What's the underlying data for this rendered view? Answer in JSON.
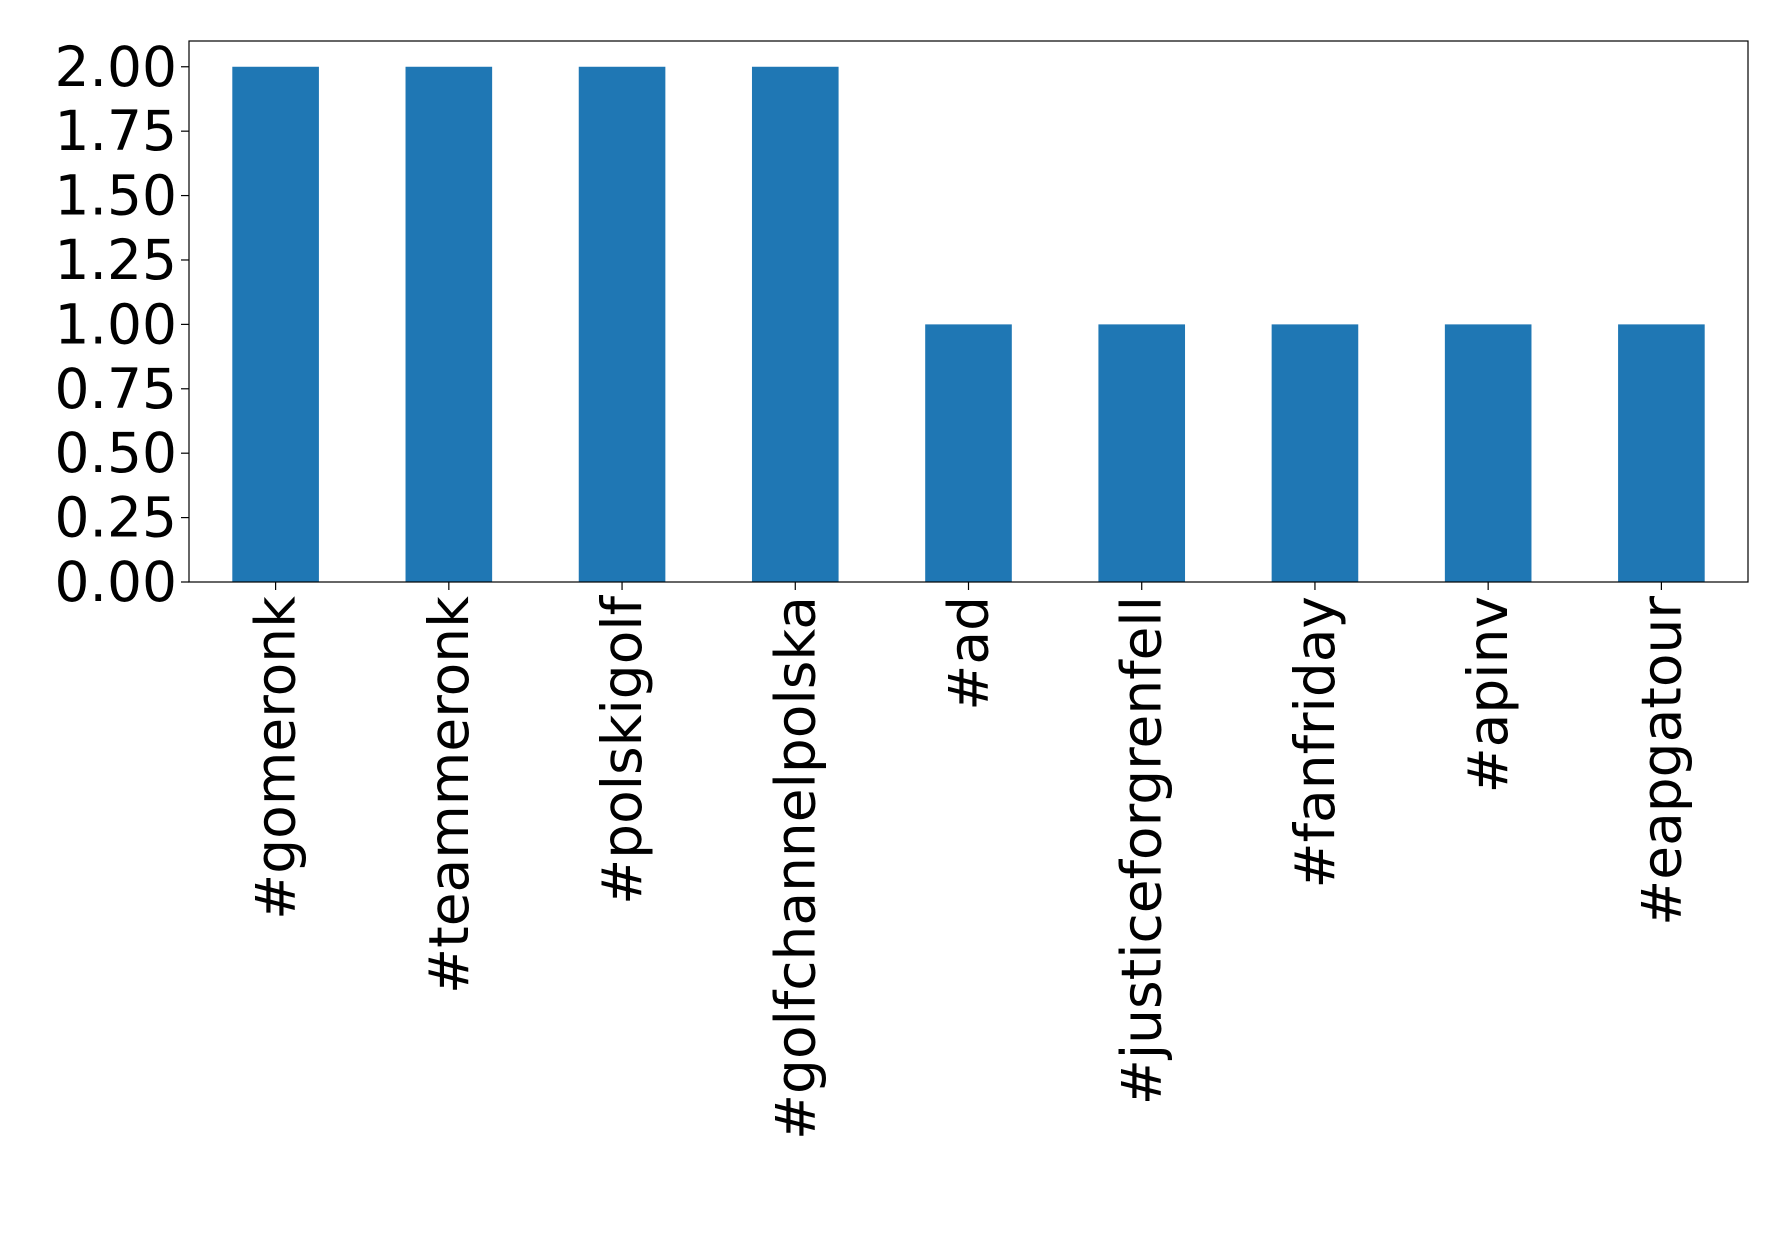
{
  "chart_data": {
    "type": "bar",
    "categories": [
      "#gomeronk",
      "#teammeronk",
      "#polskigolf",
      "#golfchannelpolska",
      "#ad",
      "#justiceforgrenfell",
      "#fanfriday",
      "#apinv",
      "#eapgatour"
    ],
    "values": [
      2,
      2,
      2,
      2,
      1,
      1,
      1,
      1,
      1
    ],
    "color": "#1f77b4",
    "ylim": [
      0,
      2.1
    ],
    "yticks": [
      {
        "value": 0,
        "label": "0.00"
      },
      {
        "value": 0.25,
        "label": "0.25"
      },
      {
        "value": 0.5,
        "label": "0.50"
      },
      {
        "value": 0.75,
        "label": "0.75"
      },
      {
        "value": 1,
        "label": "1.00"
      },
      {
        "value": 1.25,
        "label": "1.25"
      },
      {
        "value": 1.5,
        "label": "1.50"
      },
      {
        "value": 1.75,
        "label": "1.75"
      },
      {
        "value": 2,
        "label": "2.00"
      }
    ],
    "grid": false
  }
}
